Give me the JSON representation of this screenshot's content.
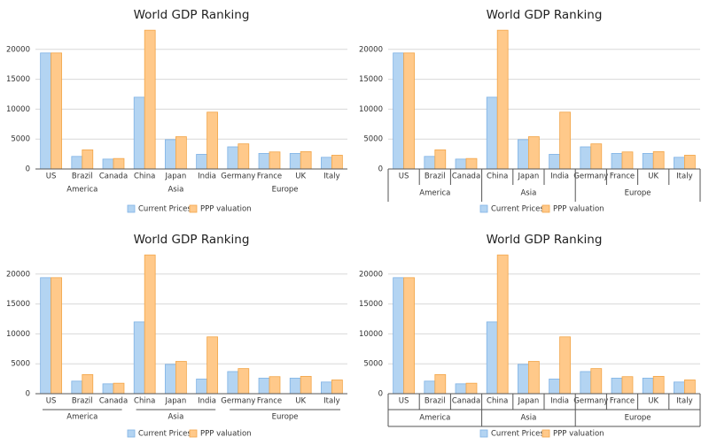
{
  "chart_data": [
    {
      "type": "bar",
      "title": "World GDP Ranking",
      "groups": [
        {
          "label": "America",
          "categories": [
            "US",
            "Brazil",
            "Canada"
          ]
        },
        {
          "label": "Asia",
          "categories": [
            "China",
            "Japan",
            "India"
          ]
        },
        {
          "label": "Europe",
          "categories": [
            "Germany",
            "France",
            "UK",
            "Italy"
          ]
        }
      ],
      "series": [
        {
          "name": "Current Prices",
          "color": "#b3d4f2",
          "values": [
            19400,
            2100,
            1650,
            12000,
            4900,
            2450,
            3700,
            2600,
            2600,
            1950
          ]
        },
        {
          "name": "PPP valuation",
          "color": "#ffc98a",
          "values": [
            19400,
            3200,
            1750,
            23200,
            5400,
            9500,
            4200,
            2850,
            2900,
            2300
          ]
        }
      ],
      "ylim": [
        0,
        25000
      ],
      "yticks": [
        0,
        5000,
        10000,
        15000,
        20000
      ],
      "grid": true
    },
    {
      "type": "bar",
      "title": "World GDP Ranking",
      "groups": [
        {
          "label": "America",
          "categories": [
            "US",
            "Brazil",
            "Canada"
          ]
        },
        {
          "label": "Asia",
          "categories": [
            "China",
            "Japan",
            "India"
          ]
        },
        {
          "label": "Europe",
          "categories": [
            "Germany",
            "France",
            "UK",
            "Italy"
          ]
        }
      ],
      "series": [
        {
          "name": "Current Prices",
          "color": "#b3d4f2",
          "values": [
            19400,
            2100,
            1650,
            12000,
            4900,
            2450,
            3700,
            2600,
            2600,
            1950
          ]
        },
        {
          "name": "PPP valuation",
          "color": "#ffc98a",
          "values": [
            19400,
            3200,
            1750,
            23200,
            5400,
            9500,
            4200,
            2850,
            2900,
            2300
          ]
        }
      ],
      "ylim": [
        0,
        25000
      ],
      "yticks": [
        0,
        5000,
        10000,
        15000,
        20000
      ],
      "grid": true
    },
    {
      "type": "bar",
      "title": "World GDP Ranking",
      "groups": [
        {
          "label": "America",
          "categories": [
            "US",
            "Brazil",
            "Canada"
          ]
        },
        {
          "label": "Asia",
          "categories": [
            "China",
            "Japan",
            "India"
          ]
        },
        {
          "label": "Europe",
          "categories": [
            "Germany",
            "France",
            "UK",
            "Italy"
          ]
        }
      ],
      "series": [
        {
          "name": "Current Prices",
          "color": "#b3d4f2",
          "values": [
            19400,
            2100,
            1650,
            12000,
            4900,
            2450,
            3700,
            2600,
            2600,
            1950
          ]
        },
        {
          "name": "PPP valuation",
          "color": "#ffc98a",
          "values": [
            19400,
            3200,
            1750,
            23200,
            5400,
            9500,
            4200,
            2850,
            2900,
            2300
          ]
        }
      ],
      "ylim": [
        0,
        25000
      ],
      "yticks": [
        0,
        5000,
        10000,
        15000,
        20000
      ],
      "grid": true
    },
    {
      "type": "bar",
      "title": "World GDP Ranking",
      "groups": [
        {
          "label": "America",
          "categories": [
            "US",
            "Brazil",
            "Canada"
          ]
        },
        {
          "label": "Asia",
          "categories": [
            "China",
            "Japan",
            "India"
          ]
        },
        {
          "label": "Europe",
          "categories": [
            "Germany",
            "France",
            "UK",
            "Italy"
          ]
        }
      ],
      "series": [
        {
          "name": "Current Prices",
          "color": "#b3d4f2",
          "values": [
            19400,
            2100,
            1650,
            12000,
            4900,
            2450,
            3700,
            2600,
            2600,
            1950
          ]
        },
        {
          "name": "PPP valuation",
          "color": "#ffc98a",
          "values": [
            19400,
            3200,
            1750,
            23200,
            5400,
            9500,
            4200,
            2850,
            2900,
            2300
          ]
        }
      ],
      "ylim": [
        0,
        25000
      ],
      "yticks": [
        0,
        5000,
        10000,
        15000,
        20000
      ],
      "grid": true
    }
  ]
}
